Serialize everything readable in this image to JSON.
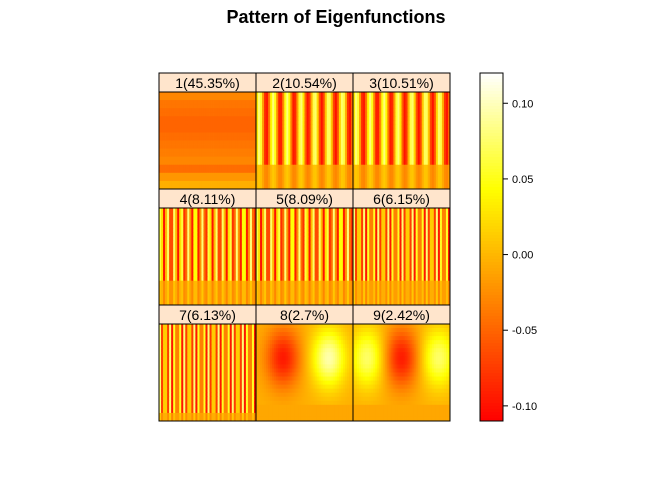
{
  "chart_data": {
    "type": "heatmap",
    "title": "Pattern of Eigenfunctions",
    "layout": {
      "rows": 3,
      "cols": 3
    },
    "panels": [
      {
        "label": "1(45.35%)",
        "pattern": "horizontal-bands",
        "stripes": 0,
        "vertical_profile": [
          -0.03,
          -0.04,
          -0.045,
          -0.05,
          -0.05,
          -0.045,
          -0.04,
          -0.035,
          -0.03,
          -0.045,
          -0.02,
          -0.005
        ]
      },
      {
        "label": "2(10.54%)",
        "pattern": "vertical-stripes",
        "stripes": 7,
        "amplitude": 0.1,
        "active_fraction": 0.75
      },
      {
        "label": "3(10.51%)",
        "pattern": "vertical-stripes",
        "stripes": 7,
        "amplitude": 0.1,
        "active_fraction": 0.75
      },
      {
        "label": "4(8.11%)",
        "pattern": "vertical-stripes",
        "stripes": 14,
        "amplitude": 0.1,
        "active_fraction": 0.75
      },
      {
        "label": "5(8.09%)",
        "pattern": "vertical-stripes",
        "stripes": 14,
        "amplitude": 0.1,
        "active_fraction": 0.75
      },
      {
        "label": "6(6.15%)",
        "pattern": "vertical-stripes",
        "stripes": 20,
        "amplitude": 0.1,
        "active_fraction": 0.75
      },
      {
        "label": "7(6.13%)",
        "pattern": "vertical-stripes",
        "stripes": 20,
        "amplitude": 0.1,
        "active_fraction": 0.9
      },
      {
        "label": "8(2.7%)",
        "pattern": "blob",
        "blobs": [
          {
            "cx": 0.28,
            "cy": 0.35,
            "value": -0.09
          },
          {
            "cx": 0.75,
            "cy": 0.35,
            "value": 0.1
          }
        ]
      },
      {
        "label": "9(2.42%)",
        "pattern": "blob",
        "blobs": [
          {
            "cx": 0.15,
            "cy": 0.35,
            "value": 0.08
          },
          {
            "cx": 0.5,
            "cy": 0.35,
            "value": -0.09
          },
          {
            "cx": 0.88,
            "cy": 0.35,
            "value": 0.08
          }
        ]
      }
    ],
    "colorbar": {
      "range": [
        -0.11,
        0.12
      ],
      "ticks": [
        0.1,
        0.05,
        0.0,
        -0.05,
        -0.1
      ],
      "tick_labels": [
        "0.10",
        "0.05",
        "0.00",
        "-0.05",
        "-0.10"
      ],
      "palette": [
        "#ff0000",
        "#ff8000",
        "#ffff00",
        "#ffffff"
      ]
    }
  },
  "colors": {
    "strip_fill": "#ffe5cc",
    "border": "#000000"
  }
}
